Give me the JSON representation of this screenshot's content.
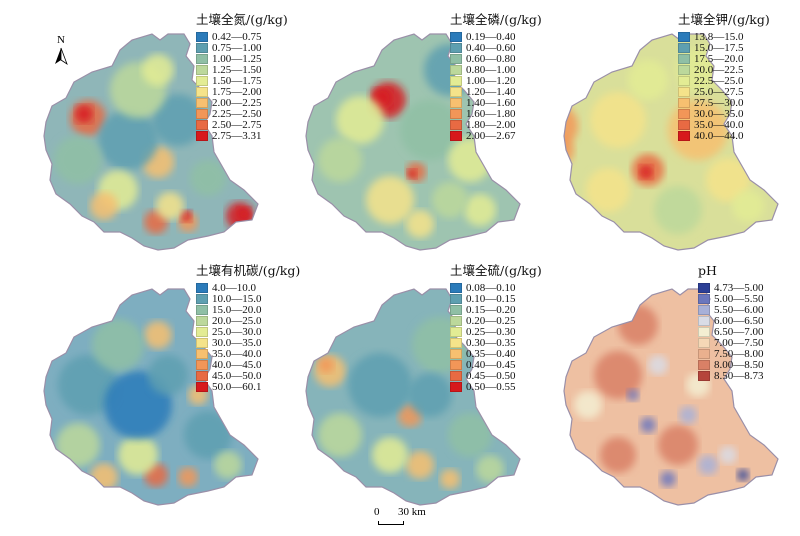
{
  "north_label": "N",
  "scale": {
    "zero": "0",
    "max": "30 km"
  },
  "panels": [
    {
      "title": "土壤全氮/(g/kg)",
      "base_color": "#8fb6b8",
      "classes": [
        {
          "label": "0.42—0.75",
          "color": "#2b7bba"
        },
        {
          "label": "0.75—1.00",
          "color": "#5e9fb0"
        },
        {
          "label": "1.00—1.25",
          "color": "#8fbfa5"
        },
        {
          "label": "1.25—1.50",
          "color": "#bcd89b"
        },
        {
          "label": "1.50—1.75",
          "color": "#e3ec94"
        },
        {
          "label": "1.75—2.00",
          "color": "#f5e38a"
        },
        {
          "label": "2.00—2.25",
          "color": "#f7c070"
        },
        {
          "label": "2.25—2.50",
          "color": "#f29658"
        },
        {
          "label": "2.50—2.75",
          "color": "#e86a43"
        },
        {
          "label": "2.75—3.31",
          "color": "#d7191c"
        }
      ]
    },
    {
      "title": "土壤全磷/(g/kg)",
      "base_color": "#9ec4b0",
      "classes": [
        {
          "label": "0.19—0.40",
          "color": "#2b7bba"
        },
        {
          "label": "0.40—0.60",
          "color": "#5e9fb0"
        },
        {
          "label": "0.60—0.80",
          "color": "#8fbfa5"
        },
        {
          "label": "0.80—1.00",
          "color": "#bcd89b"
        },
        {
          "label": "1.00—1.20",
          "color": "#e3ec94"
        },
        {
          "label": "1.20—1.40",
          "color": "#f5e38a"
        },
        {
          "label": "1.40—1.60",
          "color": "#f7c070"
        },
        {
          "label": "1.60—1.80",
          "color": "#f29658"
        },
        {
          "label": "1.80—2.00",
          "color": "#e86a43"
        },
        {
          "label": "2.00—2.67",
          "color": "#d7191c"
        }
      ]
    },
    {
      "title": "土壤全钾/(g/kg)",
      "base_color": "#d9df9a",
      "classes": [
        {
          "label": "13.8—15.0",
          "color": "#2b7bba"
        },
        {
          "label": "15.0—17.5",
          "color": "#5e9fb0"
        },
        {
          "label": "17.5—20.0",
          "color": "#8fbfa5"
        },
        {
          "label": "20.0—22.5",
          "color": "#bcd89b"
        },
        {
          "label": "22.5—25.0",
          "color": "#e3ec94"
        },
        {
          "label": "25.0—27.5",
          "color": "#f5e38a"
        },
        {
          "label": "27.5—30.0",
          "color": "#f7c070"
        },
        {
          "label": "30.0—35.0",
          "color": "#f29658"
        },
        {
          "label": "35.0—40.0",
          "color": "#e86a43"
        },
        {
          "label": "40.0—44.0",
          "color": "#d7191c"
        }
      ]
    },
    {
      "title": "土壤有机碳/(g/kg)",
      "base_color": "#7eaec0",
      "classes": [
        {
          "label": "4.0—10.0",
          "color": "#2b7bba"
        },
        {
          "label": "10.0—15.0",
          "color": "#5e9fb0"
        },
        {
          "label": "15.0—20.0",
          "color": "#8fbfa5"
        },
        {
          "label": "20.0—25.0",
          "color": "#bcd89b"
        },
        {
          "label": "25.0—30.0",
          "color": "#e3ec94"
        },
        {
          "label": "30.0—35.0",
          "color": "#f5e38a"
        },
        {
          "label": "35.0—40.0",
          "color": "#f7c070"
        },
        {
          "label": "40.0—45.0",
          "color": "#f29658"
        },
        {
          "label": "45.0—50.0",
          "color": "#e86a43"
        },
        {
          "label": "50.0—60.1",
          "color": "#d7191c"
        }
      ]
    },
    {
      "title": "土壤全硫/(g/kg)",
      "base_color": "#86b4ba",
      "classes": [
        {
          "label": "0.08—0.10",
          "color": "#2b7bba"
        },
        {
          "label": "0.10—0.15",
          "color": "#5e9fb0"
        },
        {
          "label": "0.15—0.20",
          "color": "#8fbfa5"
        },
        {
          "label": "0.20—0.25",
          "color": "#bcd89b"
        },
        {
          "label": "0.25—0.30",
          "color": "#e3ec94"
        },
        {
          "label": "0.30—0.35",
          "color": "#f5e38a"
        },
        {
          "label": "0.35—0.40",
          "color": "#f7c070"
        },
        {
          "label": "0.40—0.45",
          "color": "#f29658"
        },
        {
          "label": "0.45—0.50",
          "color": "#e86a43"
        },
        {
          "label": "0.50—0.55",
          "color": "#d7191c"
        }
      ]
    },
    {
      "title": "pH",
      "base_color": "#eec0a2",
      "classes": [
        {
          "label": "4.73—5.00",
          "color": "#2c3f96"
        },
        {
          "label": "5.00—5.50",
          "color": "#6a76bd"
        },
        {
          "label": "5.50—6.00",
          "color": "#a7b0d8"
        },
        {
          "label": "6.00—6.50",
          "color": "#d9dce6"
        },
        {
          "label": "6.50—7.00",
          "color": "#f3eed2"
        },
        {
          "label": "7.00—7.50",
          "color": "#f5d8b6"
        },
        {
          "label": "7.50—8.00",
          "color": "#eab08e"
        },
        {
          "label": "8.00—8.50",
          "color": "#d98066"
        },
        {
          "label": "8.50—8.73",
          "color": "#b5443b"
        }
      ]
    }
  ]
}
